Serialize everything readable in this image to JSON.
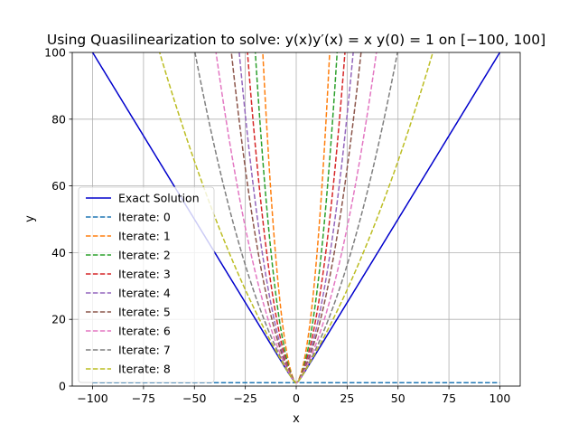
{
  "chart_data": {
    "type": "line",
    "title": "Using Quasilinearization to solve: y(x)y′(x) = x    y(0) = 1 on [−100, 100]",
    "xlabel": "x",
    "ylabel": "y",
    "xlim": [
      -110,
      110
    ],
    "ylim": [
      0,
      100
    ],
    "xticks": [
      -100,
      -75,
      -50,
      -25,
      0,
      25,
      50,
      75,
      100
    ],
    "xtick_labels": [
      "−100",
      "−75",
      "−50",
      "−25",
      "0",
      "25",
      "50",
      "75",
      "100"
    ],
    "yticks": [
      0,
      20,
      40,
      60,
      80,
      100
    ],
    "ytick_labels": [
      "0",
      "20",
      "40",
      "60",
      "80",
      "100"
    ],
    "grid": true,
    "legend_position": "center-left",
    "domain": [
      -100,
      100
    ],
    "series": [
      {
        "name": "Exact Solution",
        "color": "#0000cc",
        "style": "solid",
        "formula": "sqrt(x^2+1)"
      },
      {
        "name": "Iterate: 0",
        "color": "#1f77b4",
        "style": "dashed",
        "initial_value": 1
      },
      {
        "name": "Iterate: 1",
        "color": "#ff7f0e",
        "style": "dashed"
      },
      {
        "name": "Iterate: 2",
        "color": "#2ca02c",
        "style": "dashed"
      },
      {
        "name": "Iterate: 3",
        "color": "#d62728",
        "style": "dashed"
      },
      {
        "name": "Iterate: 4",
        "color": "#9467bd",
        "style": "dashed"
      },
      {
        "name": "Iterate: 5",
        "color": "#8c564b",
        "style": "dashed"
      },
      {
        "name": "Iterate: 6",
        "color": "#e377c2",
        "style": "dashed"
      },
      {
        "name": "Iterate: 7",
        "color": "#7f7f7f",
        "style": "dashed"
      },
      {
        "name": "Iterate: 8",
        "color": "#bcbd22",
        "style": "dashed"
      }
    ]
  }
}
